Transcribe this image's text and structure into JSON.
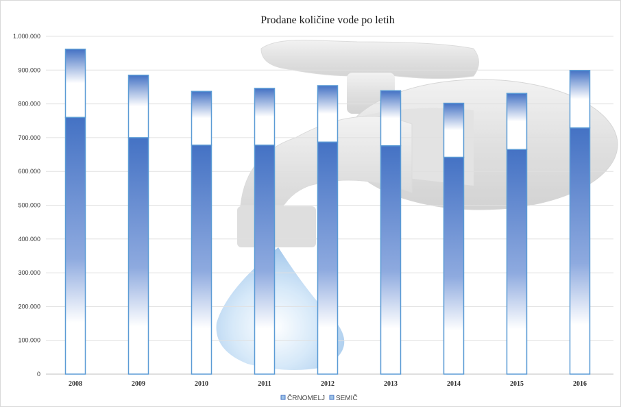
{
  "chart_data": {
    "type": "bar",
    "stacked": true,
    "title": "Prodane količine vode po letih",
    "categories": [
      "2008",
      "2009",
      "2010",
      "2011",
      "2012",
      "2013",
      "2014",
      "2015",
      "2016"
    ],
    "series": [
      {
        "name": "ČRNOMELJ",
        "values": [
          760000,
          700000,
          678000,
          678000,
          687000,
          676000,
          642000,
          665000,
          729000
        ]
      },
      {
        "name": "SEMIČ",
        "values": [
          202000,
          185000,
          159000,
          168000,
          167000,
          163000,
          160000,
          166000,
          170000
        ]
      }
    ],
    "ylim": [
      0,
      1000000
    ],
    "yticks": [
      "0",
      "100.000",
      "200.000",
      "300.000",
      "400.000",
      "500.000",
      "600.000",
      "700.000",
      "800.000",
      "900.000",
      "1.000.000"
    ],
    "grid": true,
    "legend": "bottom",
    "colors": {
      "bar_fill": "#4472c4",
      "bar_outline": "#5b9bd5",
      "grid": "#e0e0e0"
    }
  }
}
